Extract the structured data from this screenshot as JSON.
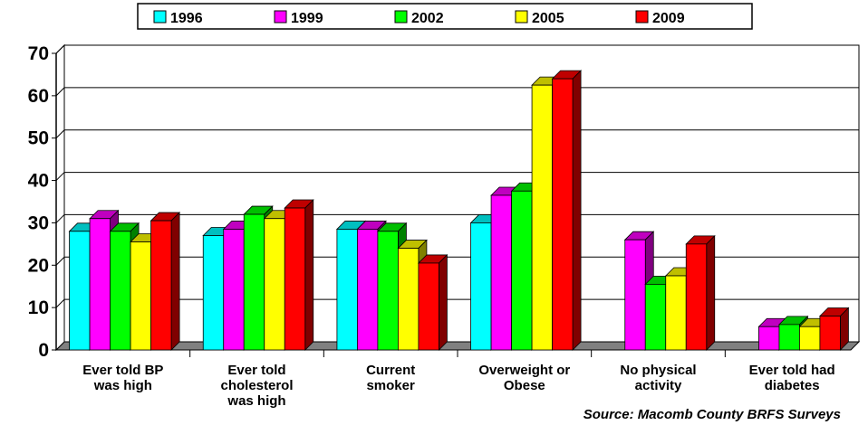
{
  "chart_data": {
    "type": "bar",
    "categories": [
      [
        "Ever told BP",
        "was high"
      ],
      [
        "Ever told",
        "cholesterol",
        "was high"
      ],
      [
        "Current",
        "smoker"
      ],
      [
        "Overweight or",
        "Obese"
      ],
      [
        "No physical",
        "activity"
      ],
      [
        "Ever told had",
        "diabetes"
      ]
    ],
    "series": [
      {
        "name": "1996",
        "color": "#00ffff",
        "values": [
          28,
          27,
          28.5,
          30,
          null,
          null
        ]
      },
      {
        "name": "1999",
        "color": "#ff00ff",
        "values": [
          31,
          28.5,
          28.5,
          36.5,
          26,
          5.5
        ]
      },
      {
        "name": "2002",
        "color": "#00ff00",
        "values": [
          28,
          32,
          28,
          37.5,
          15.5,
          6
        ]
      },
      {
        "name": "2005",
        "color": "#ffff00",
        "values": [
          25.5,
          31,
          24,
          62.5,
          17.5,
          5.5
        ]
      },
      {
        "name": "2009",
        "color": "#ff0000",
        "values": [
          30.5,
          33.5,
          20.5,
          64,
          25,
          8
        ]
      }
    ],
    "ylim": [
      0,
      70
    ],
    "yticks": [
      0,
      10,
      20,
      30,
      40,
      50,
      60,
      70
    ],
    "grid": true,
    "legend_position": "top",
    "source": "Source:  Macomb County BRFS Surveys"
  }
}
